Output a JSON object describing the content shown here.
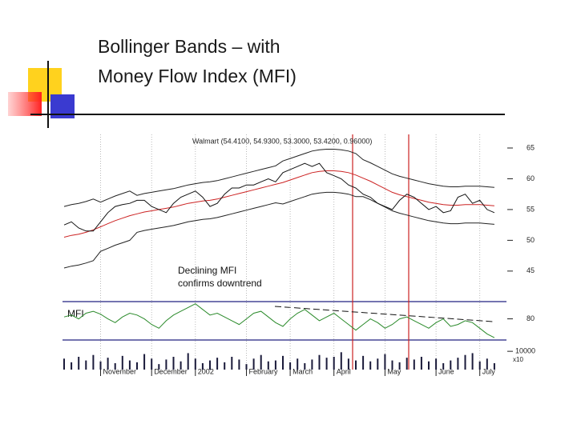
{
  "slide": {
    "title_lines": [
      "Bollinger Bands – with",
      "Money Flow Index (MFI)"
    ]
  },
  "chart_data": [
    {
      "type": "line",
      "title": "Walmart (54.4100, 54.9300, 53.3000, 53.4200, 0.96000)",
      "annotations": [
        "Declining MFI",
        "confirms downtrend"
      ],
      "xlim": [
        0,
        60
      ],
      "ylim": [
        40.3,
        67.6
      ],
      "yticks": [
        65,
        60,
        55,
        50,
        45
      ],
      "series": [
        {
          "color": "#222222",
          "values": [
            55.5,
            55.8,
            56,
            56.3,
            56.7,
            56.2,
            56.7,
            57.2,
            57.6,
            58,
            57.3,
            57.6,
            57.8,
            58,
            58.2,
            58.4,
            58.7,
            59,
            59.2,
            59.4,
            59.5,
            59.7,
            60,
            60.3,
            60.6,
            60.9,
            61.2,
            61.5,
            61.8,
            62.1,
            62.9,
            63.3,
            63.7,
            64.1,
            64.5,
            64.7,
            64.8,
            64.8,
            64.7,
            64.5,
            64.1,
            63.1,
            62.6,
            62,
            61.4,
            60.8,
            60.4,
            60.1,
            59.8,
            59.5,
            59.2,
            59,
            58.8,
            58.7,
            58.7,
            58.8,
            58.8,
            58.8,
            58.7,
            58.6
          ]
        },
        {
          "color": "#cc2222",
          "values": [
            50.5,
            50.8,
            51,
            51.3,
            51.7,
            52.2,
            52.7,
            53.2,
            53.6,
            54,
            54.3,
            54.6,
            54.8,
            55,
            55.2,
            55.4,
            55.7,
            56,
            56.2,
            56.4,
            56.5,
            56.7,
            57,
            57.3,
            57.6,
            57.9,
            58.2,
            58.5,
            58.8,
            59.1,
            59.4,
            59.8,
            60.2,
            60.6,
            61,
            61.2,
            61.3,
            61.3,
            61.2,
            61,
            60.6,
            60.1,
            59.6,
            59,
            58.4,
            57.8,
            57.4,
            57.1,
            56.8,
            56.5,
            56.2,
            56,
            55.8,
            55.7,
            55.7,
            55.8,
            55.8,
            55.8,
            55.7,
            55.6
          ]
        },
        {
          "color": "#222222",
          "values": [
            45.5,
            45.8,
            46,
            46.3,
            46.7,
            48.2,
            48.7,
            49.2,
            49.6,
            50,
            51.3,
            51.6,
            51.8,
            52,
            52.2,
            52.4,
            52.7,
            53,
            53.2,
            53.4,
            53.5,
            53.7,
            54,
            54.3,
            54.6,
            54.9,
            55.2,
            55.5,
            55.8,
            56.1,
            55.9,
            56.3,
            56.7,
            57.1,
            57.5,
            57.7,
            57.8,
            57.8,
            57.7,
            57.5,
            57.1,
            57.1,
            56.6,
            56,
            55.4,
            54.8,
            54.4,
            54.1,
            53.8,
            53.5,
            53.2,
            53,
            52.8,
            52.7,
            52.7,
            52.8,
            52.8,
            52.8,
            52.7,
            52.6
          ]
        },
        {
          "color": "#111111",
          "values": [
            52.5,
            53,
            52,
            51.5,
            51.5,
            53,
            54.5,
            55.5,
            55.8,
            56,
            56.5,
            56.5,
            55.5,
            55,
            54.5,
            56,
            57,
            57.5,
            58,
            57,
            55.5,
            56,
            57.5,
            58.5,
            58.5,
            59,
            59,
            59.5,
            60,
            59.5,
            61,
            61.5,
            62,
            62.5,
            62,
            62.5,
            61,
            60.5,
            60,
            59,
            58.5,
            57.5,
            57,
            56,
            55.5,
            55,
            56.5,
            57.5,
            57,
            56,
            55,
            55.5,
            54.5,
            54.8,
            57,
            57.5,
            56,
            56.5,
            55,
            54.5
          ]
        }
      ]
    },
    {
      "type": "line",
      "label": "MFI",
      "xlim": [
        0,
        60
      ],
      "ylim": [
        55,
        100
      ],
      "yticks": [
        80
      ],
      "series": [
        {
          "color": "#2a8a2a",
          "values": [
            82,
            84,
            80,
            86,
            88,
            85,
            80,
            76,
            82,
            86,
            84,
            80,
            74,
            70,
            78,
            84,
            88,
            92,
            96,
            90,
            84,
            86,
            82,
            78,
            74,
            80,
            86,
            88,
            82,
            76,
            72,
            80,
            86,
            90,
            84,
            78,
            82,
            86,
            80,
            74,
            68,
            74,
            80,
            76,
            70,
            74,
            80,
            82,
            78,
            74,
            70,
            76,
            80,
            72,
            74,
            78,
            76,
            70,
            64,
            60
          ]
        }
      ]
    },
    {
      "type": "bar",
      "unit_label": "x10",
      "color": "#1a1a3a",
      "xlim": [
        0,
        60
      ],
      "ylim": [
        0,
        14000
      ],
      "yticks": [
        10000
      ],
      "xticks": [
        {
          "value": 5,
          "label": "November"
        },
        {
          "value": 12,
          "label": "December"
        },
        {
          "value": 18,
          "label": "2002"
        },
        {
          "value": 25,
          "label": "February"
        },
        {
          "value": 31,
          "label": "March"
        },
        {
          "value": 37,
          "label": "April"
        },
        {
          "value": 44,
          "label": "May"
        },
        {
          "value": 51,
          "label": "June"
        },
        {
          "value": 57,
          "label": "July"
        }
      ],
      "values": [
        6000,
        4000,
        7000,
        5000,
        8000,
        4500,
        6500,
        3500,
        7500,
        5000,
        4000,
        8500,
        6000,
        3000,
        5500,
        7000,
        4500,
        9000,
        6000,
        3500,
        5000,
        6500,
        4000,
        7000,
        5500,
        3000,
        6000,
        8000,
        4500,
        5000,
        7500,
        4000,
        6000,
        3500,
        5500,
        8000,
        6500,
        7000,
        9500,
        6000,
        5000,
        7500,
        4500,
        6000,
        8500,
        5000,
        4000,
        6500,
        5500,
        7000,
        4500,
        6000,
        3500,
        5000,
        6500,
        8000,
        9000,
        4500,
        6000,
        3500
      ]
    }
  ]
}
